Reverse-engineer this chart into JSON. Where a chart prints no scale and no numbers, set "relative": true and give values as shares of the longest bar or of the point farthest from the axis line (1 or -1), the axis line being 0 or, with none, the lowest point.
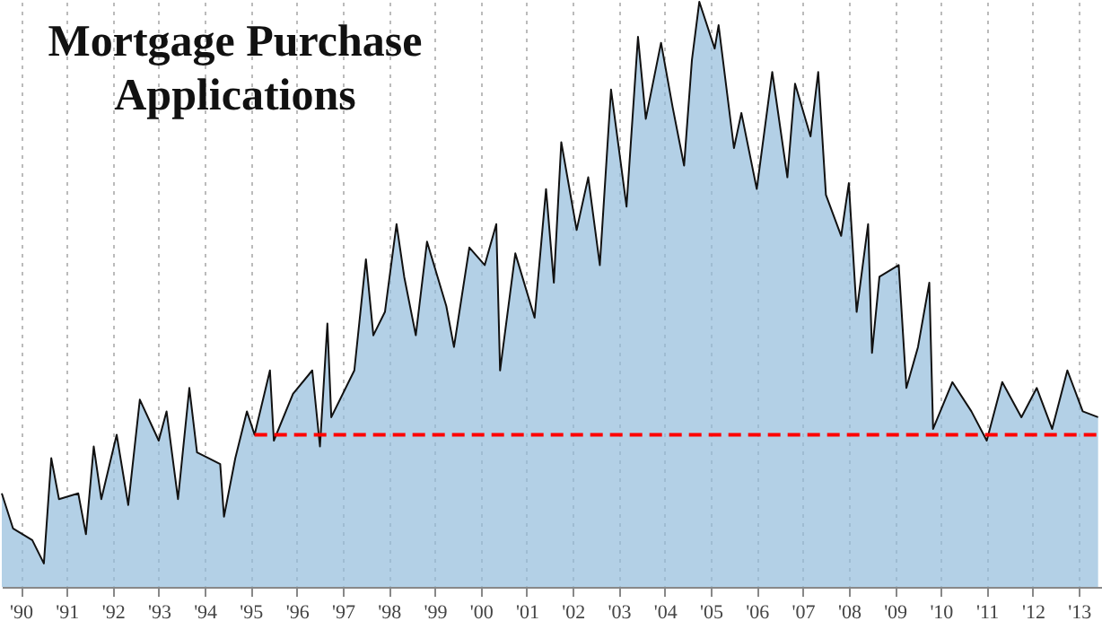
{
  "chart_data": {
    "type": "area",
    "title": "Mortgage Purchase Applications",
    "relative": true,
    "xlim": [
      "1990-02",
      "2014-01"
    ],
    "xticks": [
      {
        "value": "1990-07",
        "label": "'90"
      },
      {
        "value": "1991-07",
        "label": "'91"
      },
      {
        "value": "1992-07",
        "label": "'92"
      },
      {
        "value": "1993-07",
        "label": "'93"
      },
      {
        "value": "1994-07",
        "label": "'94"
      },
      {
        "value": "1995-07",
        "label": "'95"
      },
      {
        "value": "1996-07",
        "label": "'96"
      },
      {
        "value": "1997-07",
        "label": "'97"
      },
      {
        "value": "1998-07",
        "label": "'98"
      },
      {
        "value": "1999-07",
        "label": "'99"
      },
      {
        "value": "2000-07",
        "label": "'00"
      },
      {
        "value": "2001-07",
        "label": "'01"
      },
      {
        "value": "2002-07",
        "label": "'02"
      },
      {
        "value": "2003-07",
        "label": "'03"
      },
      {
        "value": "2004-07",
        "label": "'04"
      },
      {
        "value": "2005-07",
        "label": "'05"
      },
      {
        "value": "2006-07",
        "label": "'06"
      },
      {
        "value": "2007-07",
        "label": "'07"
      },
      {
        "value": "2008-07",
        "label": "'08"
      },
      {
        "value": "2009-07",
        "label": "'09"
      },
      {
        "value": "2010-07",
        "label": "'10"
      },
      {
        "value": "2011-07",
        "label": "'11"
      },
      {
        "value": "2012-07",
        "label": "'12"
      },
      {
        "value": "2013-07",
        "label": "'13"
      }
    ],
    "grid": "x",
    "tick_labels": "x",
    "series": [
      {
        "color": "#93bcdc",
        "x": [
          "1990-02",
          "1990-05",
          "1990-10",
          "1991-01",
          "1991-03",
          "1991-05",
          "1991-10",
          "1991-12",
          "1992-02",
          "1992-04",
          "1992-08",
          "1992-11",
          "1993-02",
          "1993-07",
          "1993-09",
          "1993-12",
          "1994-03",
          "1994-05",
          "1994-11",
          "1994-12",
          "1995-03",
          "1995-06",
          "1995-08",
          "1995-12",
          "1996-01",
          "1996-06",
          "1996-11",
          "1997-01",
          "1997-03",
          "1997-04",
          "1997-10",
          "1998-01",
          "1998-03",
          "1998-06",
          "1998-09",
          "1998-11",
          "1999-02",
          "1999-05",
          "1999-10",
          "1999-12",
          "2000-04",
          "2000-08",
          "2000-11",
          "2000-12",
          "2001-04",
          "2001-09",
          "2001-12",
          "2002-02",
          "2002-04",
          "2002-08",
          "2002-11",
          "2003-02",
          "2003-05",
          "2003-09",
          "2003-12",
          "2004-02",
          "2004-06",
          "2004-09",
          "2004-12",
          "2005-02",
          "2005-04",
          "2005-08",
          "2005-09",
          "2006-01",
          "2006-03",
          "2006-07",
          "2006-11",
          "2007-03",
          "2007-05",
          "2007-09",
          "2007-11",
          "2008-01",
          "2008-05",
          "2008-07",
          "2008-09",
          "2008-12",
          "2009-01",
          "2009-03",
          "2009-08",
          "2009-10",
          "2010-01",
          "2010-04",
          "2010-05",
          "2010-10",
          "2011-03",
          "2011-07",
          "2011-11",
          "2012-04",
          "2012-08",
          "2012-12",
          "2013-04",
          "2013-08",
          "2013-12"
        ],
        "values": [
          0.16,
          0.1,
          0.08,
          0.04,
          0.22,
          0.15,
          0.16,
          0.09,
          0.24,
          0.15,
          0.26,
          0.14,
          0.32,
          0.25,
          0.3,
          0.15,
          0.34,
          0.23,
          0.21,
          0.12,
          0.22,
          0.3,
          0.26,
          0.37,
          0.25,
          0.33,
          0.37,
          0.24,
          0.45,
          0.29,
          0.37,
          0.56,
          0.43,
          0.47,
          0.62,
          0.53,
          0.43,
          0.59,
          0.48,
          0.41,
          0.58,
          0.55,
          0.62,
          0.37,
          0.57,
          0.46,
          0.68,
          0.52,
          0.76,
          0.61,
          0.7,
          0.55,
          0.85,
          0.65,
          0.94,
          0.8,
          0.93,
          0.82,
          0.72,
          0.9,
          1.0,
          0.92,
          0.96,
          0.75,
          0.81,
          0.68,
          0.88,
          0.7,
          0.86,
          0.77,
          0.88,
          0.67,
          0.6,
          0.69,
          0.47,
          0.62,
          0.4,
          0.53,
          0.55,
          0.34,
          0.41,
          0.52,
          0.27,
          0.35,
          0.3,
          0.25,
          0.35,
          0.29,
          0.34,
          0.27,
          0.37,
          0.3,
          0.29
        ]
      },
      {
        "type": "line",
        "color": "#ff0000",
        "line_style": "dashed",
        "x": [
          "1995-08",
          "2014-01"
        ],
        "values": [
          0.26,
          0.26
        ]
      }
    ]
  }
}
